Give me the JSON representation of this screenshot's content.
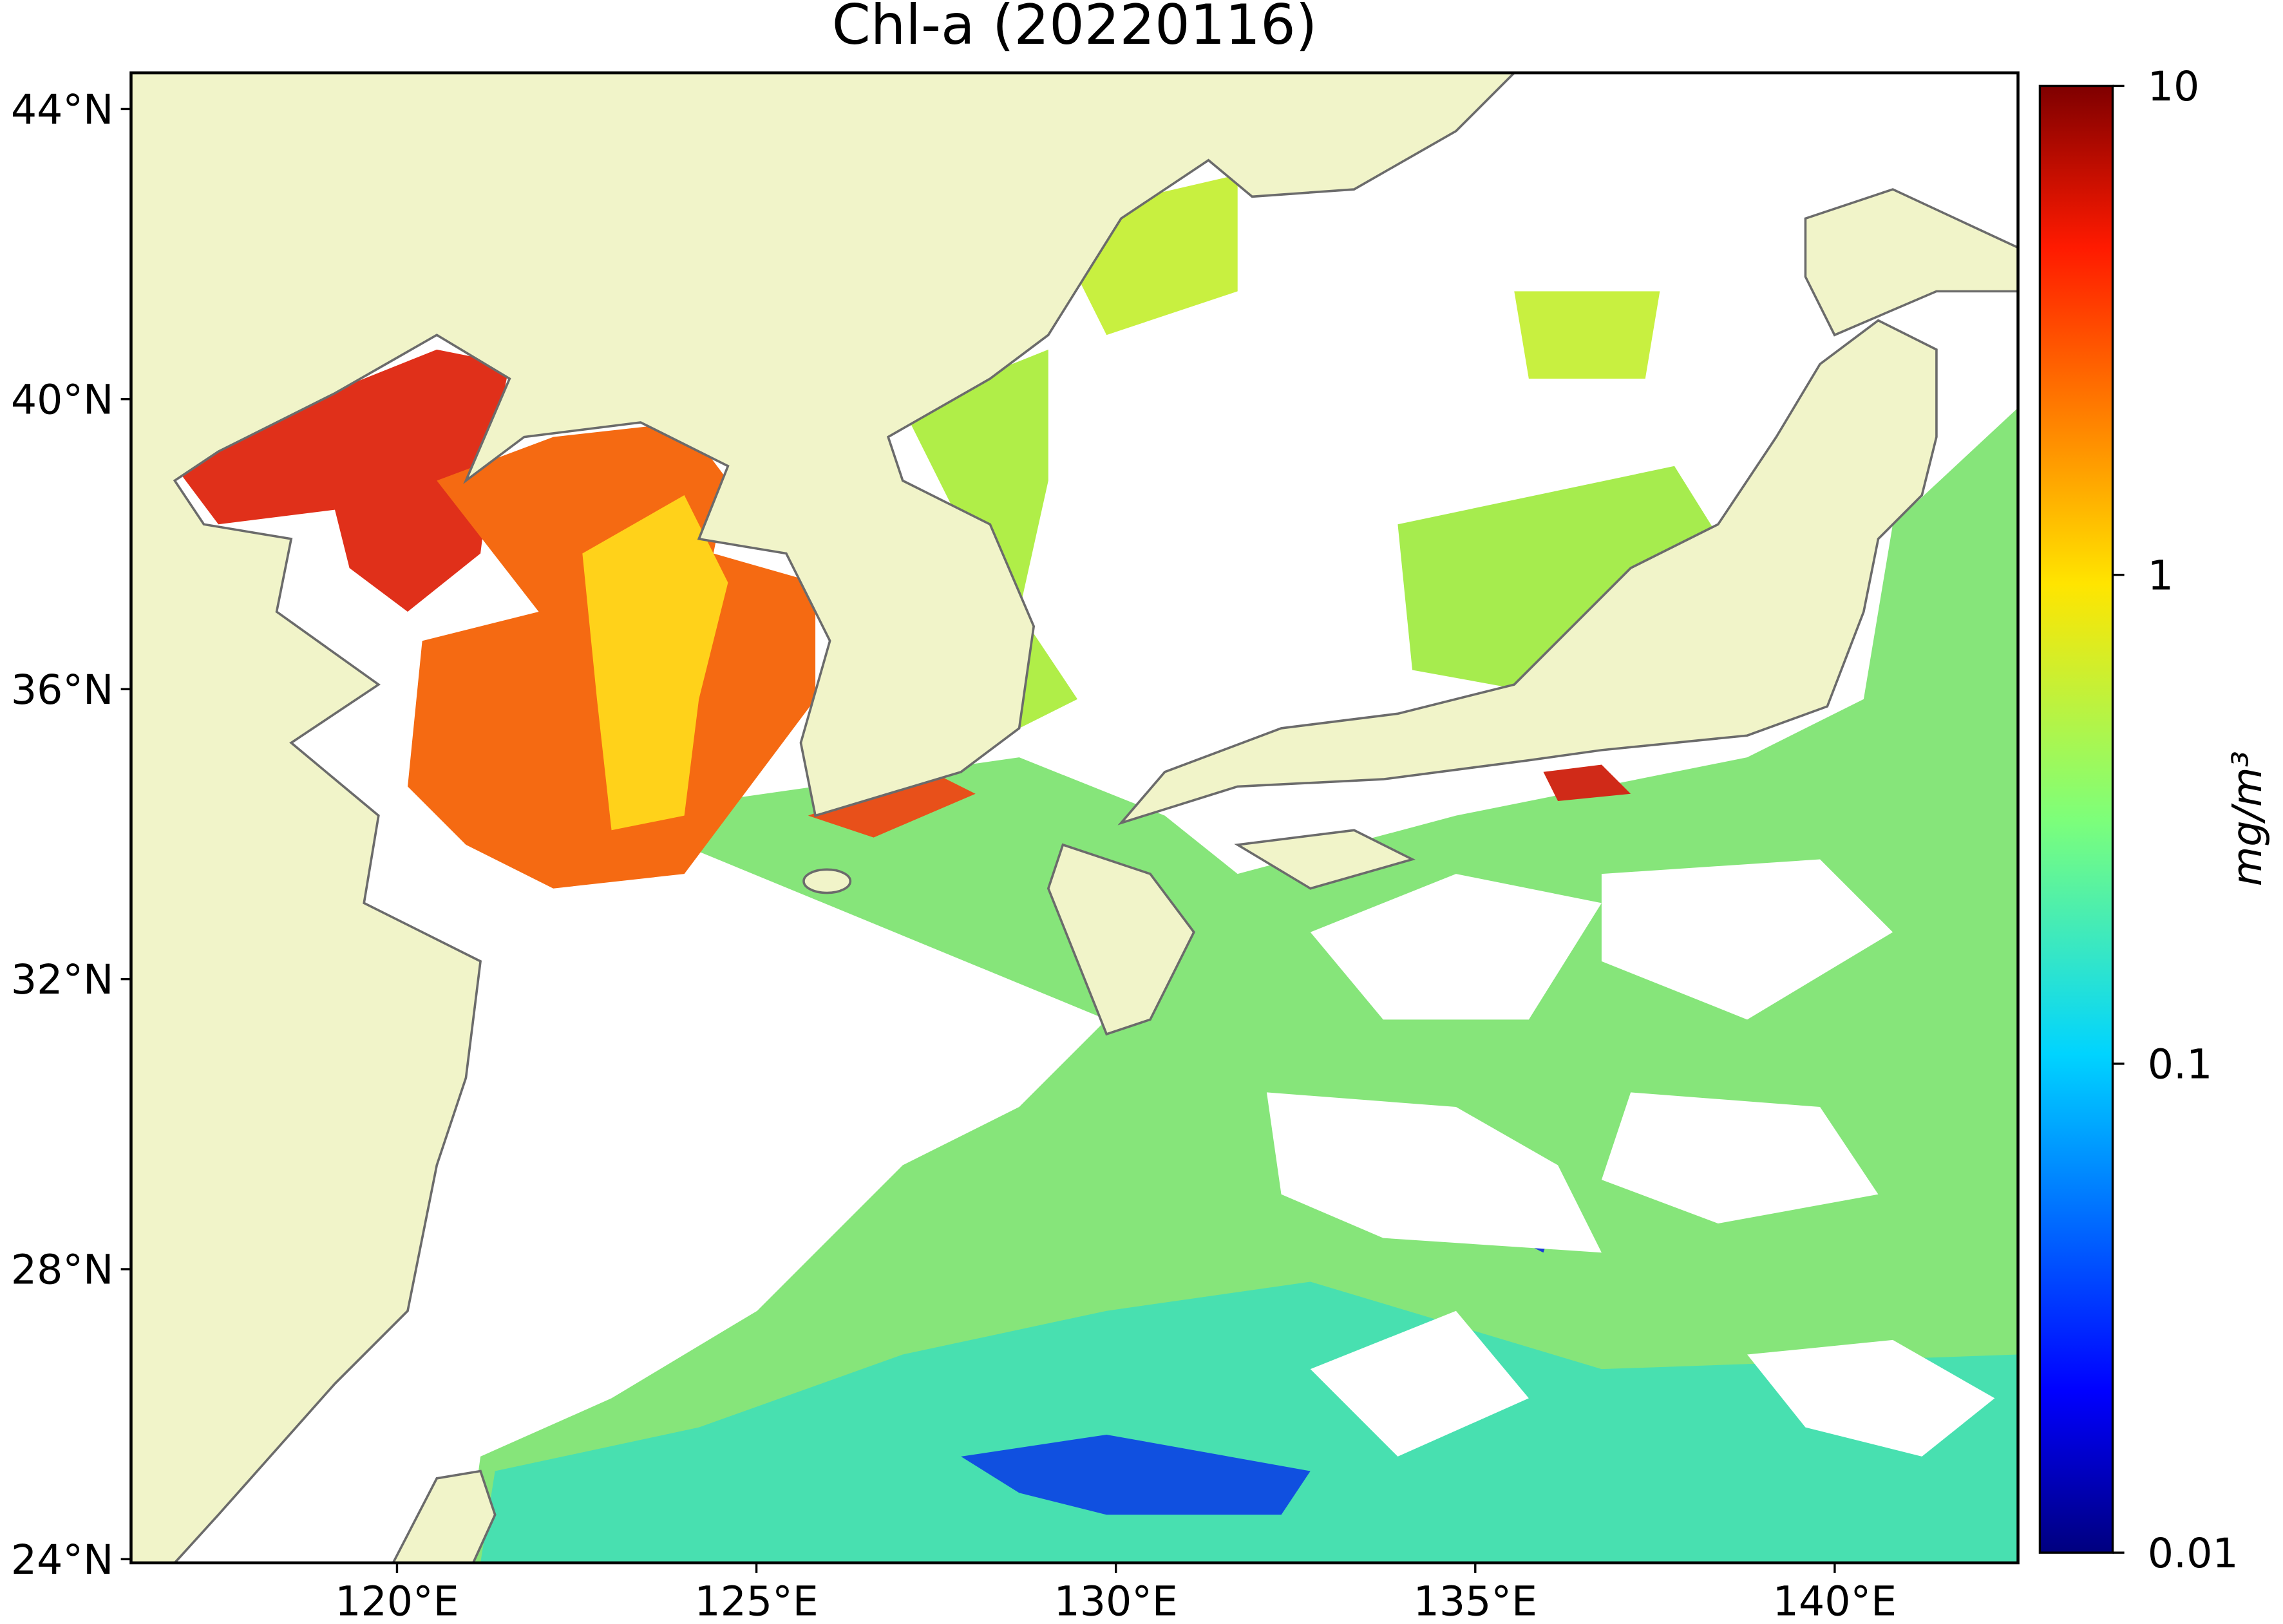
{
  "map": {
    "title": "Chl-a (20220116)",
    "xlim": [
      116.3,
      142.55
    ],
    "ylim": [
      23.95,
      44.5
    ],
    "xticks": [
      {
        "value": 120,
        "label": "120°E"
      },
      {
        "value": 125,
        "label": "125°E"
      },
      {
        "value": 130,
        "label": "130°E"
      },
      {
        "value": 135,
        "label": "135°E"
      },
      {
        "value": 140,
        "label": "140°E"
      }
    ],
    "yticks": [
      {
        "value": 24,
        "label": "24°N"
      },
      {
        "value": 28,
        "label": "28°N"
      },
      {
        "value": 32,
        "label": "32°N"
      },
      {
        "value": 36,
        "label": "36°N"
      },
      {
        "value": 40,
        "label": "40°N"
      },
      {
        "value": 44,
        "label": "44°N"
      }
    ],
    "colorbar": {
      "label": "mg/m³",
      "scale": "log",
      "lim": [
        0.01,
        10
      ],
      "ticks": [
        10,
        1,
        0.1,
        0.01
      ]
    }
  }
}
